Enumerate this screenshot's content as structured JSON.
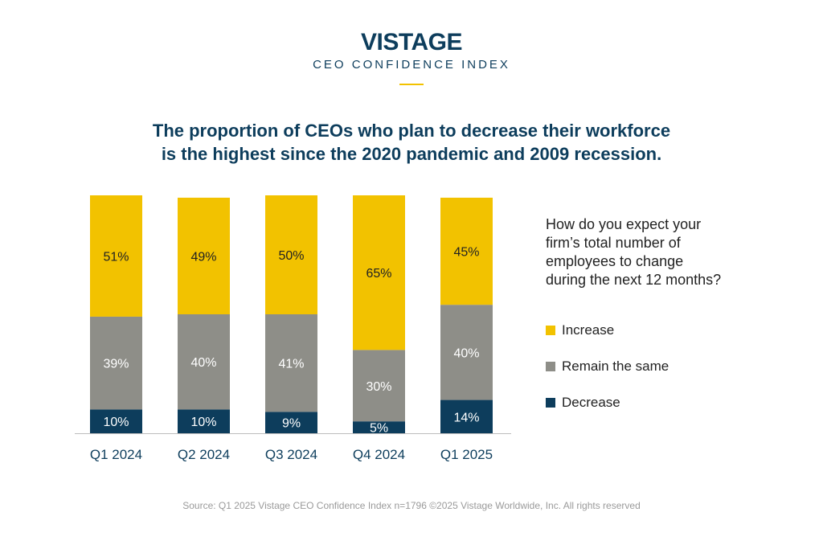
{
  "header": {
    "brand": "VISTAGE",
    "subtitle": "CEO CONFIDENCE INDEX"
  },
  "headline": {
    "line1": "The proportion of CEOs who plan to decrease their workforce",
    "line2": "is the highest since the 2020 pandemic and 2009 recession."
  },
  "question": {
    "line1": "How do you expect your",
    "line2": "firm’s total number of",
    "line3": "employees to change",
    "line4": "during the next 12 months?"
  },
  "source": "Source: Q1 2025 Vistage CEO Confidence Index n=1796 ©2025 Vistage Worldwide, Inc. All rights reserved",
  "colors": {
    "increase": "#f2c200",
    "remain": "#8e8e88",
    "decrease": "#0d3d5c",
    "brand": "#0d3d5c"
  },
  "chart_data": {
    "type": "bar",
    "stacked": true,
    "title": "",
    "xlabel": "",
    "ylabel": "",
    "ylim": [
      0,
      100
    ],
    "legend_position": "right",
    "categories": [
      "Q1 2024",
      "Q2 2024",
      "Q3 2024",
      "Q4 2024",
      "Q1 2025"
    ],
    "series": [
      {
        "name": "Decrease",
        "key": "decrease",
        "values": [
          10,
          10,
          9,
          5,
          14
        ]
      },
      {
        "name": "Remain the same",
        "key": "remain",
        "values": [
          39,
          40,
          41,
          30,
          40
        ]
      },
      {
        "name": "Increase",
        "key": "increase",
        "values": [
          51,
          49,
          50,
          65,
          45
        ]
      }
    ],
    "labels": {
      "decrease": [
        "10%",
        "10%",
        "9%",
        "5%",
        "14%"
      ],
      "remain": [
        "39%",
        "40%",
        "41%",
        "30%",
        "40%"
      ],
      "increase": [
        "51%",
        "49%",
        "50%",
        "65%",
        "45%"
      ]
    }
  }
}
